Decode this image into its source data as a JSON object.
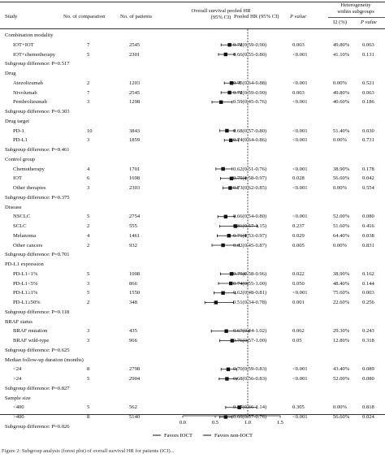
{
  "headers": {
    "study": "Study",
    "n_comp": "No. of comparation",
    "n_pat": "No. of patients",
    "plot_title_1": "Overall survival pooled HR",
    "plot_title_2": "(95% CI)",
    "pooled": "Pooled HR (95% CI)",
    "pval": "P value",
    "het_1": "Heterogeneity",
    "het_2": "within subgroups",
    "i2": "I2 (%)",
    "het_p": "P value"
  },
  "rows": [
    {
      "kind": "group",
      "label": "Combination modality"
    },
    {
      "kind": "item",
      "label": "IOT+IOT",
      "n": "7",
      "patients": "2545",
      "hr_text": "0.72(0.59-0.90)",
      "p": "0.003",
      "i2": "49.80%",
      "hp": "0.063",
      "est": 0.72,
      "lo": 0.59,
      "hi": 0.9
    },
    {
      "kind": "item",
      "label": "IOT+chemotherapy",
      "n": "5",
      "patients": "2301",
      "hr_text": "0.66(0.55-0.80)",
      "p": "<0.001",
      "i2": "41.10%",
      "hp": "0.131",
      "est": 0.66,
      "lo": 0.55,
      "hi": 0.8
    },
    {
      "kind": "subgroup",
      "label": "Subgroup difference: P=0.517"
    },
    {
      "kind": "group",
      "label": "Drug"
    },
    {
      "kind": "item",
      "label": "Atezolizumab",
      "n": "2",
      "patients": "1203",
      "hr_text": "0.75(0.64-0.88)",
      "p": "<0.001",
      "i2": "0.00%",
      "hp": "0.521",
      "est": 0.75,
      "lo": 0.64,
      "hi": 0.88
    },
    {
      "kind": "item",
      "label": "Nivolumab",
      "n": "7",
      "patients": "2545",
      "hr_text": "0.72(0.59-0.90)",
      "p": "0.003",
      "i2": "49.80%",
      "hp": "0.063",
      "est": 0.72,
      "lo": 0.59,
      "hi": 0.9
    },
    {
      "kind": "item",
      "label": "Pembrolizumab",
      "n": "3",
      "patients": "1298",
      "hr_text": "0.59(0.45-0.76)",
      "p": "<0.001",
      "i2": "40.60%",
      "hp": "0.186",
      "est": 0.59,
      "lo": 0.45,
      "hi": 0.76
    },
    {
      "kind": "subgroup",
      "label": "Subgroup difference: P=0.303"
    },
    {
      "kind": "group",
      "label": "Drug target"
    },
    {
      "kind": "item",
      "label": "PD-1",
      "n": "10",
      "patients": "3843",
      "hr_text": "0.68(0.57-0.80)",
      "p": "<0.001",
      "i2": "51.40%",
      "hp": "0.030",
      "est": 0.68,
      "lo": 0.57,
      "hi": 0.8
    },
    {
      "kind": "item",
      "label": "PD-L1",
      "n": "3",
      "patients": "1859",
      "hr_text": "0.74(0.64-0.86)",
      "p": "<0.001",
      "i2": "0.00%",
      "hp": "0.731",
      "est": 0.74,
      "lo": 0.64,
      "hi": 0.86
    },
    {
      "kind": "subgroup",
      "label": "Subgroup difference: P=0.461"
    },
    {
      "kind": "group",
      "label": "Control group"
    },
    {
      "kind": "item",
      "label": "Chemotherapy",
      "n": "4",
      "patients": "1701",
      "hr_text": "0.62(0.51-0.76)",
      "p": "<0.001",
      "i2": "38.90%",
      "hp": "0.178",
      "est": 0.62,
      "lo": 0.51,
      "hi": 0.76
    },
    {
      "kind": "item",
      "label": "IOT",
      "n": "6",
      "patients": "1698",
      "hr_text": "0.75(0.58-0.97)",
      "p": "0.028",
      "i2": "56.60%",
      "hp": "0.042",
      "est": 0.75,
      "lo": 0.58,
      "hi": 0.97
    },
    {
      "kind": "item",
      "label": "Other therapies",
      "n": "3",
      "patients": "2303",
      "hr_text": "0.73(0.62-0.85)",
      "p": "<0.001",
      "i2": "0.00%",
      "hp": "0.554",
      "est": 0.73,
      "lo": 0.62,
      "hi": 0.85
    },
    {
      "kind": "subgroup",
      "label": "Subgroup difference: P=0.375"
    },
    {
      "kind": "group",
      "label": "Disease"
    },
    {
      "kind": "item",
      "label": "NSCLC",
      "n": "5",
      "patients": "2754",
      "hr_text": "0.66(0.54-0.80)",
      "p": "<0.001",
      "i2": "52.00%",
      "hp": "0.080",
      "est": 0.66,
      "lo": 0.54,
      "hi": 0.8
    },
    {
      "kind": "item",
      "label": "SCLC",
      "n": "2",
      "patients": "555",
      "hr_text": "0.81(0.57-1.15)",
      "p": "0.237",
      "i2": "51.60%",
      "hp": "0.416",
      "est": 0.81,
      "lo": 0.57,
      "hi": 1.15
    },
    {
      "kind": "item",
      "label": "Melanoma",
      "n": "4",
      "patients": "1461",
      "hr_text": "0.71(0.53-0.97)",
      "p": "0.029",
      "i2": "64.40%",
      "hp": "0.038",
      "est": 0.71,
      "lo": 0.53,
      "hi": 0.97
    },
    {
      "kind": "item",
      "label": "Other cancers",
      "n": "2",
      "patients": "932",
      "hr_text": "0.62(0.45-0.87)",
      "p": "0.005",
      "i2": "0.00%",
      "hp": "0.831",
      "est": 0.62,
      "lo": 0.45,
      "hi": 0.87
    },
    {
      "kind": "subgroup",
      "label": "Subgroup difference: P=0.701"
    },
    {
      "kind": "group",
      "label": "PD-L1 expression"
    },
    {
      "kind": "item",
      "label": "PD-L1<1%",
      "n": "5",
      "patients": "1008",
      "hr_text": "0.75(0.58-0.96)",
      "p": "0.022",
      "i2": "38.90%",
      "hp": "0.162",
      "est": 0.75,
      "lo": 0.58,
      "hi": 0.96
    },
    {
      "kind": "item",
      "label": "PD-L1<5%",
      "n": "3",
      "patients": "866",
      "hr_text": "0.74(0.55-1.00)",
      "p": "0.050",
      "i2": "48.40%",
      "hp": "0.144",
      "est": 0.74,
      "lo": 0.55,
      "hi": 1.0
    },
    {
      "kind": "item",
      "label": "PD-L1≥1%",
      "n": "5",
      "patients": "1550",
      "hr_text": "0.62(0.48-0.81)",
      "p": "<0.001",
      "i2": "75.60%",
      "hp": "0.003",
      "est": 0.62,
      "lo": 0.48,
      "hi": 0.81
    },
    {
      "kind": "item",
      "label": "PD-L1≥50%",
      "n": "2",
      "patients": "348",
      "hr_text": "0.51(0.34-0.78)",
      "p": "0.001",
      "i2": "22.60%",
      "hp": "0.256",
      "est": 0.51,
      "lo": 0.34,
      "hi": 0.78
    },
    {
      "kind": "subgroup",
      "label": "Subgroup difference: P=0.118"
    },
    {
      "kind": "group",
      "label": "BRAF status"
    },
    {
      "kind": "item",
      "label": "BRAF mutation",
      "n": "3",
      "patients": "435",
      "hr_text": "0.67(0.44-1.02)",
      "p": "0.062",
      "i2": "29.30%",
      "hp": "0.243",
      "est": 0.67,
      "lo": 0.44,
      "hi": 1.02
    },
    {
      "kind": "item",
      "label": "BRAF wild-type",
      "n": "3",
      "patients": "966",
      "hr_text": "0.76(0.57-1.00)",
      "p": "0.05",
      "i2": "12.80%",
      "hp": "0.318",
      "est": 0.76,
      "lo": 0.57,
      "hi": 1.0
    },
    {
      "kind": "subgroup",
      "label": "Subgroup difference: P=0.625"
    },
    {
      "kind": "group",
      "label": "Median follow-up duration (months)"
    },
    {
      "kind": "item",
      "label": "<24",
      "n": "8",
      "patients": "2798",
      "hr_text": "0.70(0.59-0.83)",
      "p": "<0.001",
      "i2": "43.40%",
      "hp": "0.089",
      "est": 0.7,
      "lo": 0.59,
      "hi": 0.83
    },
    {
      "kind": "item",
      "label": ">24",
      "n": "5",
      "patients": "2904",
      "hr_text": "0.68(0.56-0.83)",
      "p": "<0.001",
      "i2": "52.00%",
      "hp": "0.080",
      "est": 0.68,
      "lo": 0.56,
      "hi": 0.83
    },
    {
      "kind": "subgroup",
      "label": "Subgroup difference: P=0.827"
    },
    {
      "kind": "group",
      "label": "Sample size"
    },
    {
      "kind": "item",
      "label": "<400",
      "n": "5",
      "patients": "562",
      "hr_text": "0.87(0.66-1.14)",
      "p": "0.305",
      "i2": "0.00%",
      "hp": "0.818",
      "est": 0.87,
      "lo": 0.66,
      "hi": 1.14
    },
    {
      "kind": "item",
      "label": ">400",
      "n": "8",
      "patients": "5140",
      "hr_text": "0.66(0.57-0.76)",
      "p": "<0.001",
      "i2": "56.60%",
      "hp": "0.024",
      "est": 0.66,
      "lo": 0.57,
      "hi": 0.76
    },
    {
      "kind": "subgroup",
      "label": "Subgroup difference: P=0.026"
    }
  ],
  "chart_data": {
    "type": "forest",
    "xlim": [
      0.0,
      1.5
    ],
    "ticks": [
      "0.0",
      "0.5",
      "1.0",
      "1.5"
    ],
    "reference_line": 1.0,
    "legend": [
      "Favors IOCT",
      "Favors non-IOCT"
    ]
  },
  "footer": "Figure 2: Subgroup analysis (forest plot) of overall survival HR for patients (ICI)..."
}
